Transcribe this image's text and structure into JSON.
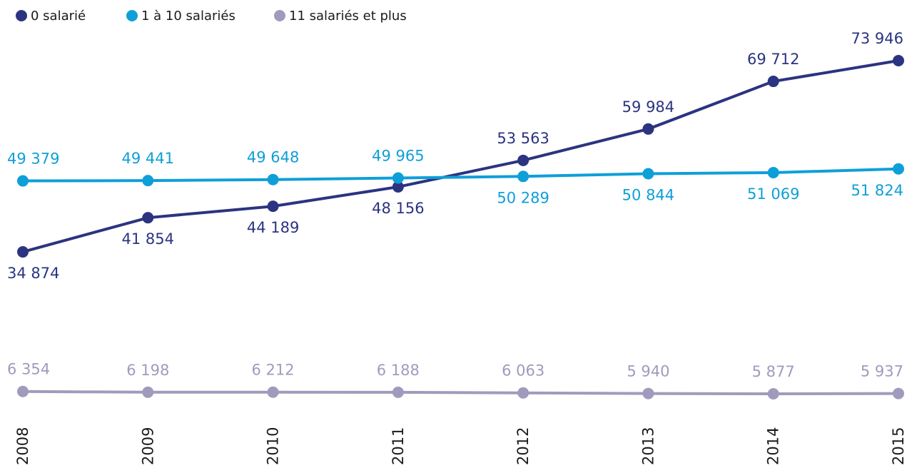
{
  "chart_data": {
    "type": "line",
    "x": [
      "2008",
      "2009",
      "2010",
      "2011",
      "2012",
      "2013",
      "2014",
      "2015"
    ],
    "series": [
      {
        "name": "0 salarié",
        "color": "#2b3480",
        "values": [
          34874,
          41854,
          44189,
          48156,
          53563,
          59984,
          69712,
          73946
        ],
        "value_labels": [
          "34 874",
          "41 854",
          "44 189",
          "48 156",
          "53 563",
          "59 984",
          "69 712",
          "73 946"
        ]
      },
      {
        "name": "1 à 10 salariés",
        "color": "#0f9fd8",
        "values": [
          49379,
          49441,
          49648,
          49965,
          50289,
          50844,
          51069,
          51824
        ],
        "value_labels": [
          "49 379",
          "49 441",
          "49 648",
          "49 965",
          "50 289",
          "50 844",
          "51 069",
          "51 824"
        ]
      },
      {
        "name": "11 salariés et plus",
        "color": "#a09bbd",
        "values": [
          6354,
          6198,
          6212,
          6188,
          6063,
          5940,
          5877,
          5937
        ],
        "value_labels": [
          "6 354",
          "6 198",
          "6 212",
          "6 188",
          "6 063",
          "5 940",
          "5 877",
          "5 937"
        ]
      }
    ]
  }
}
